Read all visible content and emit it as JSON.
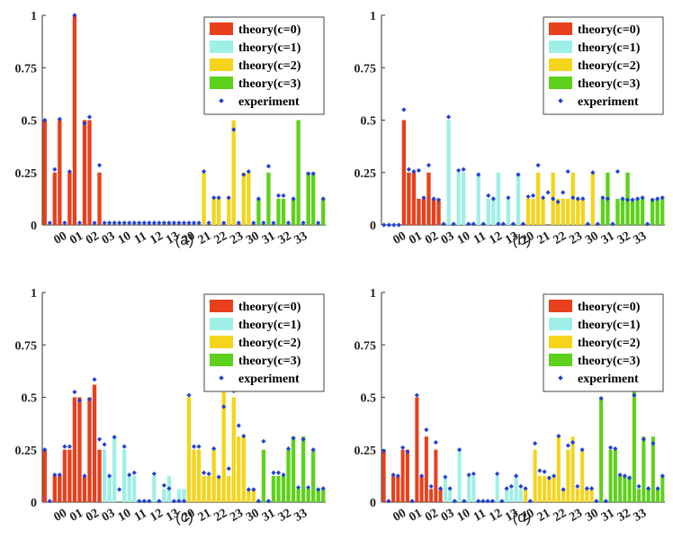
{
  "colors": {
    "c0": "#e8401c",
    "c1": "#9ef0e6",
    "c2": "#f5d41c",
    "c3": "#5ed11c",
    "exp": "#2341d6"
  },
  "charts": [
    {
      "type": "bar",
      "caption": "(a)",
      "legend": [
        "theory(c=0)",
        "theory(c=1)",
        "theory(c=2)",
        "theory(c=3)",
        "experiment"
      ],
      "yticks": [
        "0",
        "0.25",
        "0.5",
        "0.75",
        "1"
      ],
      "xticks": [
        "00",
        "01",
        "02",
        "03",
        "10",
        "11",
        "12",
        "13",
        "20",
        "21",
        "22",
        "23",
        "30",
        "31",
        "32",
        "33"
      ],
      "ylim": [
        0,
        1
      ],
      "values": [
        0.5,
        0,
        0.25,
        0.5,
        0,
        0.25,
        1,
        0,
        0.5,
        0.5,
        0,
        0.25,
        0,
        0,
        0,
        0,
        0,
        0,
        0,
        0,
        0,
        0,
        0,
        0,
        0,
        0,
        0,
        0,
        0,
        0,
        0,
        0,
        0.25,
        0,
        0.125,
        0.125,
        0,
        0.125,
        0.5,
        0,
        0.25,
        0.25,
        0,
        0.125,
        0,
        0.25,
        0,
        0.125,
        0.125,
        0,
        0.125,
        0.5,
        0,
        0.25,
        0.25,
        0,
        0.125
      ],
      "exp": [
        0.5,
        0.01,
        0.265,
        0.505,
        0.01,
        0.255,
        1.0,
        0.01,
        0.485,
        0.515,
        0.01,
        0.285,
        0.01,
        0.01,
        0.01,
        0.01,
        0.01,
        0.01,
        0.01,
        0.01,
        0.01,
        0.01,
        0.01,
        0.01,
        0.01,
        0.01,
        0.01,
        0.01,
        0.01,
        0.01,
        0.01,
        0.01,
        0.255,
        0.01,
        0.13,
        0.13,
        0.01,
        0.13,
        0.455,
        0.01,
        0.24,
        0.255,
        0.01,
        0.125,
        0.01,
        0.28,
        0.01,
        0.14,
        0.14,
        0.01,
        0.125,
        0.54,
        0.01,
        0.245,
        0.245,
        0.01,
        0.125
      ]
    },
    {
      "type": "bar",
      "caption": "(b)",
      "legend": [
        "theory(c=0)",
        "theory(c=1)",
        "theory(c=2)",
        "theory(c=3)",
        "experiment"
      ],
      "yticks": [
        "0",
        "0.25",
        "0.5",
        "0.75",
        "1"
      ],
      "xticks": [
        "00",
        "01",
        "02",
        "03",
        "10",
        "11",
        "12",
        "13",
        "20",
        "21",
        "22",
        "23",
        "30",
        "31",
        "32",
        "33"
      ],
      "ylim": [
        0,
        1
      ],
      "values": [
        0,
        0,
        0,
        0,
        0.5,
        0.25,
        0.25,
        0.125,
        0.125,
        0.25,
        0.125,
        0.125,
        0,
        0.5,
        0,
        0.25,
        0.25,
        0,
        0,
        0.25,
        0,
        0.125,
        0.125,
        0.25,
        0,
        0.125,
        0,
        0.25,
        0,
        0.125,
        0.125,
        0.25,
        0.125,
        0,
        0.25,
        0.125,
        0.125,
        0.125,
        0.25,
        0.125,
        0.125,
        0,
        0.25,
        0,
        0.125,
        0.25,
        0,
        0.125,
        0.125,
        0.25,
        0.125,
        0.125,
        0.125,
        0,
        0.125,
        0.125,
        0.125
      ],
      "exp": [
        0,
        0,
        0,
        0,
        0.55,
        0.265,
        0.255,
        0.26,
        0.13,
        0.285,
        0.125,
        0.12,
        0.005,
        0.515,
        0.005,
        0.26,
        0.265,
        0.005,
        0.005,
        0.24,
        0.005,
        0.14,
        0.125,
        0.005,
        0.005,
        0.13,
        0.005,
        0.24,
        0.005,
        0.135,
        0.14,
        0.285,
        0.13,
        0.155,
        0.125,
        0.11,
        0.155,
        0.255,
        0.13,
        0.125,
        0.125,
        0.005,
        0.25,
        0.005,
        0.13,
        0.125,
        0.005,
        0.255,
        0.125,
        0.12,
        0.12,
        0.125,
        0.13,
        0.005,
        0.12,
        0.125,
        0.13
      ]
    },
    {
      "type": "bar",
      "caption": "(c)",
      "legend": [
        "theory(c=0)",
        "theory(c=1)",
        "theory(c=2)",
        "theory(c=3)",
        "experiment"
      ],
      "yticks": [
        "0",
        "0.25",
        "0.5",
        "0.75",
        "1"
      ],
      "xticks": [
        "00",
        "01",
        "02",
        "03",
        "10",
        "11",
        "12",
        "13",
        "20",
        "21",
        "22",
        "23",
        "30",
        "31",
        "32",
        "33"
      ],
      "ylim": [
        0,
        1
      ],
      "values": [
        0.25,
        0,
        0.125,
        0.125,
        0.25,
        0.25,
        0.5,
        0.5,
        0.125,
        0.5,
        0.56,
        0.25,
        0.25,
        0.125,
        0.3125,
        0,
        0.25,
        0.125,
        0.125,
        0,
        0,
        0,
        0.125,
        0,
        0.0625,
        0.125,
        0,
        0.0625,
        0.0625,
        0.5,
        0.25,
        0.25,
        0.125,
        0.125,
        0.25,
        0.125,
        0.56,
        0.125,
        0.5,
        0.3125,
        0.3125,
        0.0625,
        0.0625,
        0,
        0.25,
        0,
        0.125,
        0.125,
        0.125,
        0.25,
        0.3125,
        0.0625,
        0.3125,
        0.0625,
        0.25,
        0.0625,
        0.0625
      ],
      "exp": [
        0.25,
        0.005,
        0.13,
        0.13,
        0.265,
        0.265,
        0.525,
        0.485,
        0.125,
        0.49,
        0.585,
        0.3,
        0.275,
        0.125,
        0.31,
        0.06,
        0.265,
        0.13,
        0.14,
        0.005,
        0.005,
        0.005,
        0.135,
        0.005,
        0.08,
        0.065,
        0.005,
        0.005,
        0.005,
        0.51,
        0.265,
        0.265,
        0.14,
        0.135,
        0.255,
        0.12,
        0.455,
        0.16,
        0.53,
        0.365,
        0.315,
        0.06,
        0.06,
        0.005,
        0.29,
        0.005,
        0.14,
        0.14,
        0.13,
        0.255,
        0.305,
        0.07,
        0.3,
        0.07,
        0.25,
        0.06,
        0.065
      ]
    },
    {
      "type": "bar",
      "caption": "(d)",
      "legend": [
        "theory(c=0)",
        "theory(c=1)",
        "theory(c=2)",
        "theory(c=3)",
        "experiment"
      ],
      "yticks": [
        "0",
        "0.25",
        "0.5",
        "0.75",
        "1"
      ],
      "xticks": [
        "00",
        "01",
        "02",
        "03",
        "10",
        "11",
        "12",
        "13",
        "20",
        "21",
        "22",
        "23",
        "30",
        "31",
        "32",
        "33"
      ],
      "ylim": [
        0,
        1
      ],
      "values": [
        0.25,
        0,
        0.125,
        0.125,
        0.25,
        0.25,
        0,
        0.5,
        0.125,
        0.3125,
        0.0625,
        0.25,
        0.0625,
        0.125,
        0.0625,
        0,
        0.25,
        0,
        0.125,
        0.125,
        0,
        0,
        0,
        0,
        0.125,
        0,
        0.0625,
        0.0625,
        0.125,
        0.0625,
        0.0625,
        0,
        0.25,
        0.125,
        0.125,
        0.125,
        0.125,
        0.3125,
        0.0625,
        0.25,
        0.3125,
        0.0625,
        0.25,
        0.0625,
        0.0625,
        0,
        0.5,
        0,
        0.25,
        0.25,
        0.125,
        0.125,
        0.125,
        0.56,
        0.0625,
        0.3125,
        0.0625,
        0.3125,
        0.0625,
        0.125
      ],
      "exp": [
        0.245,
        0.005,
        0.13,
        0.125,
        0.26,
        0.24,
        0.005,
        0.51,
        0.125,
        0.345,
        0.075,
        0.285,
        0.065,
        0.12,
        0.065,
        0.005,
        0.25,
        0.005,
        0.13,
        0.135,
        0.005,
        0.005,
        0.005,
        0.005,
        0.135,
        0.005,
        0.065,
        0.075,
        0.125,
        0.075,
        0.065,
        0.005,
        0.28,
        0.15,
        0.145,
        0.115,
        0.125,
        0.315,
        0.06,
        0.27,
        0.285,
        0.075,
        0.25,
        0.065,
        0.065,
        0.005,
        0.495,
        0.005,
        0.26,
        0.255,
        0.13,
        0.125,
        0.115,
        0.51,
        0.075,
        0.3,
        0.065,
        0.28,
        0.065,
        0.125
      ]
    }
  ]
}
